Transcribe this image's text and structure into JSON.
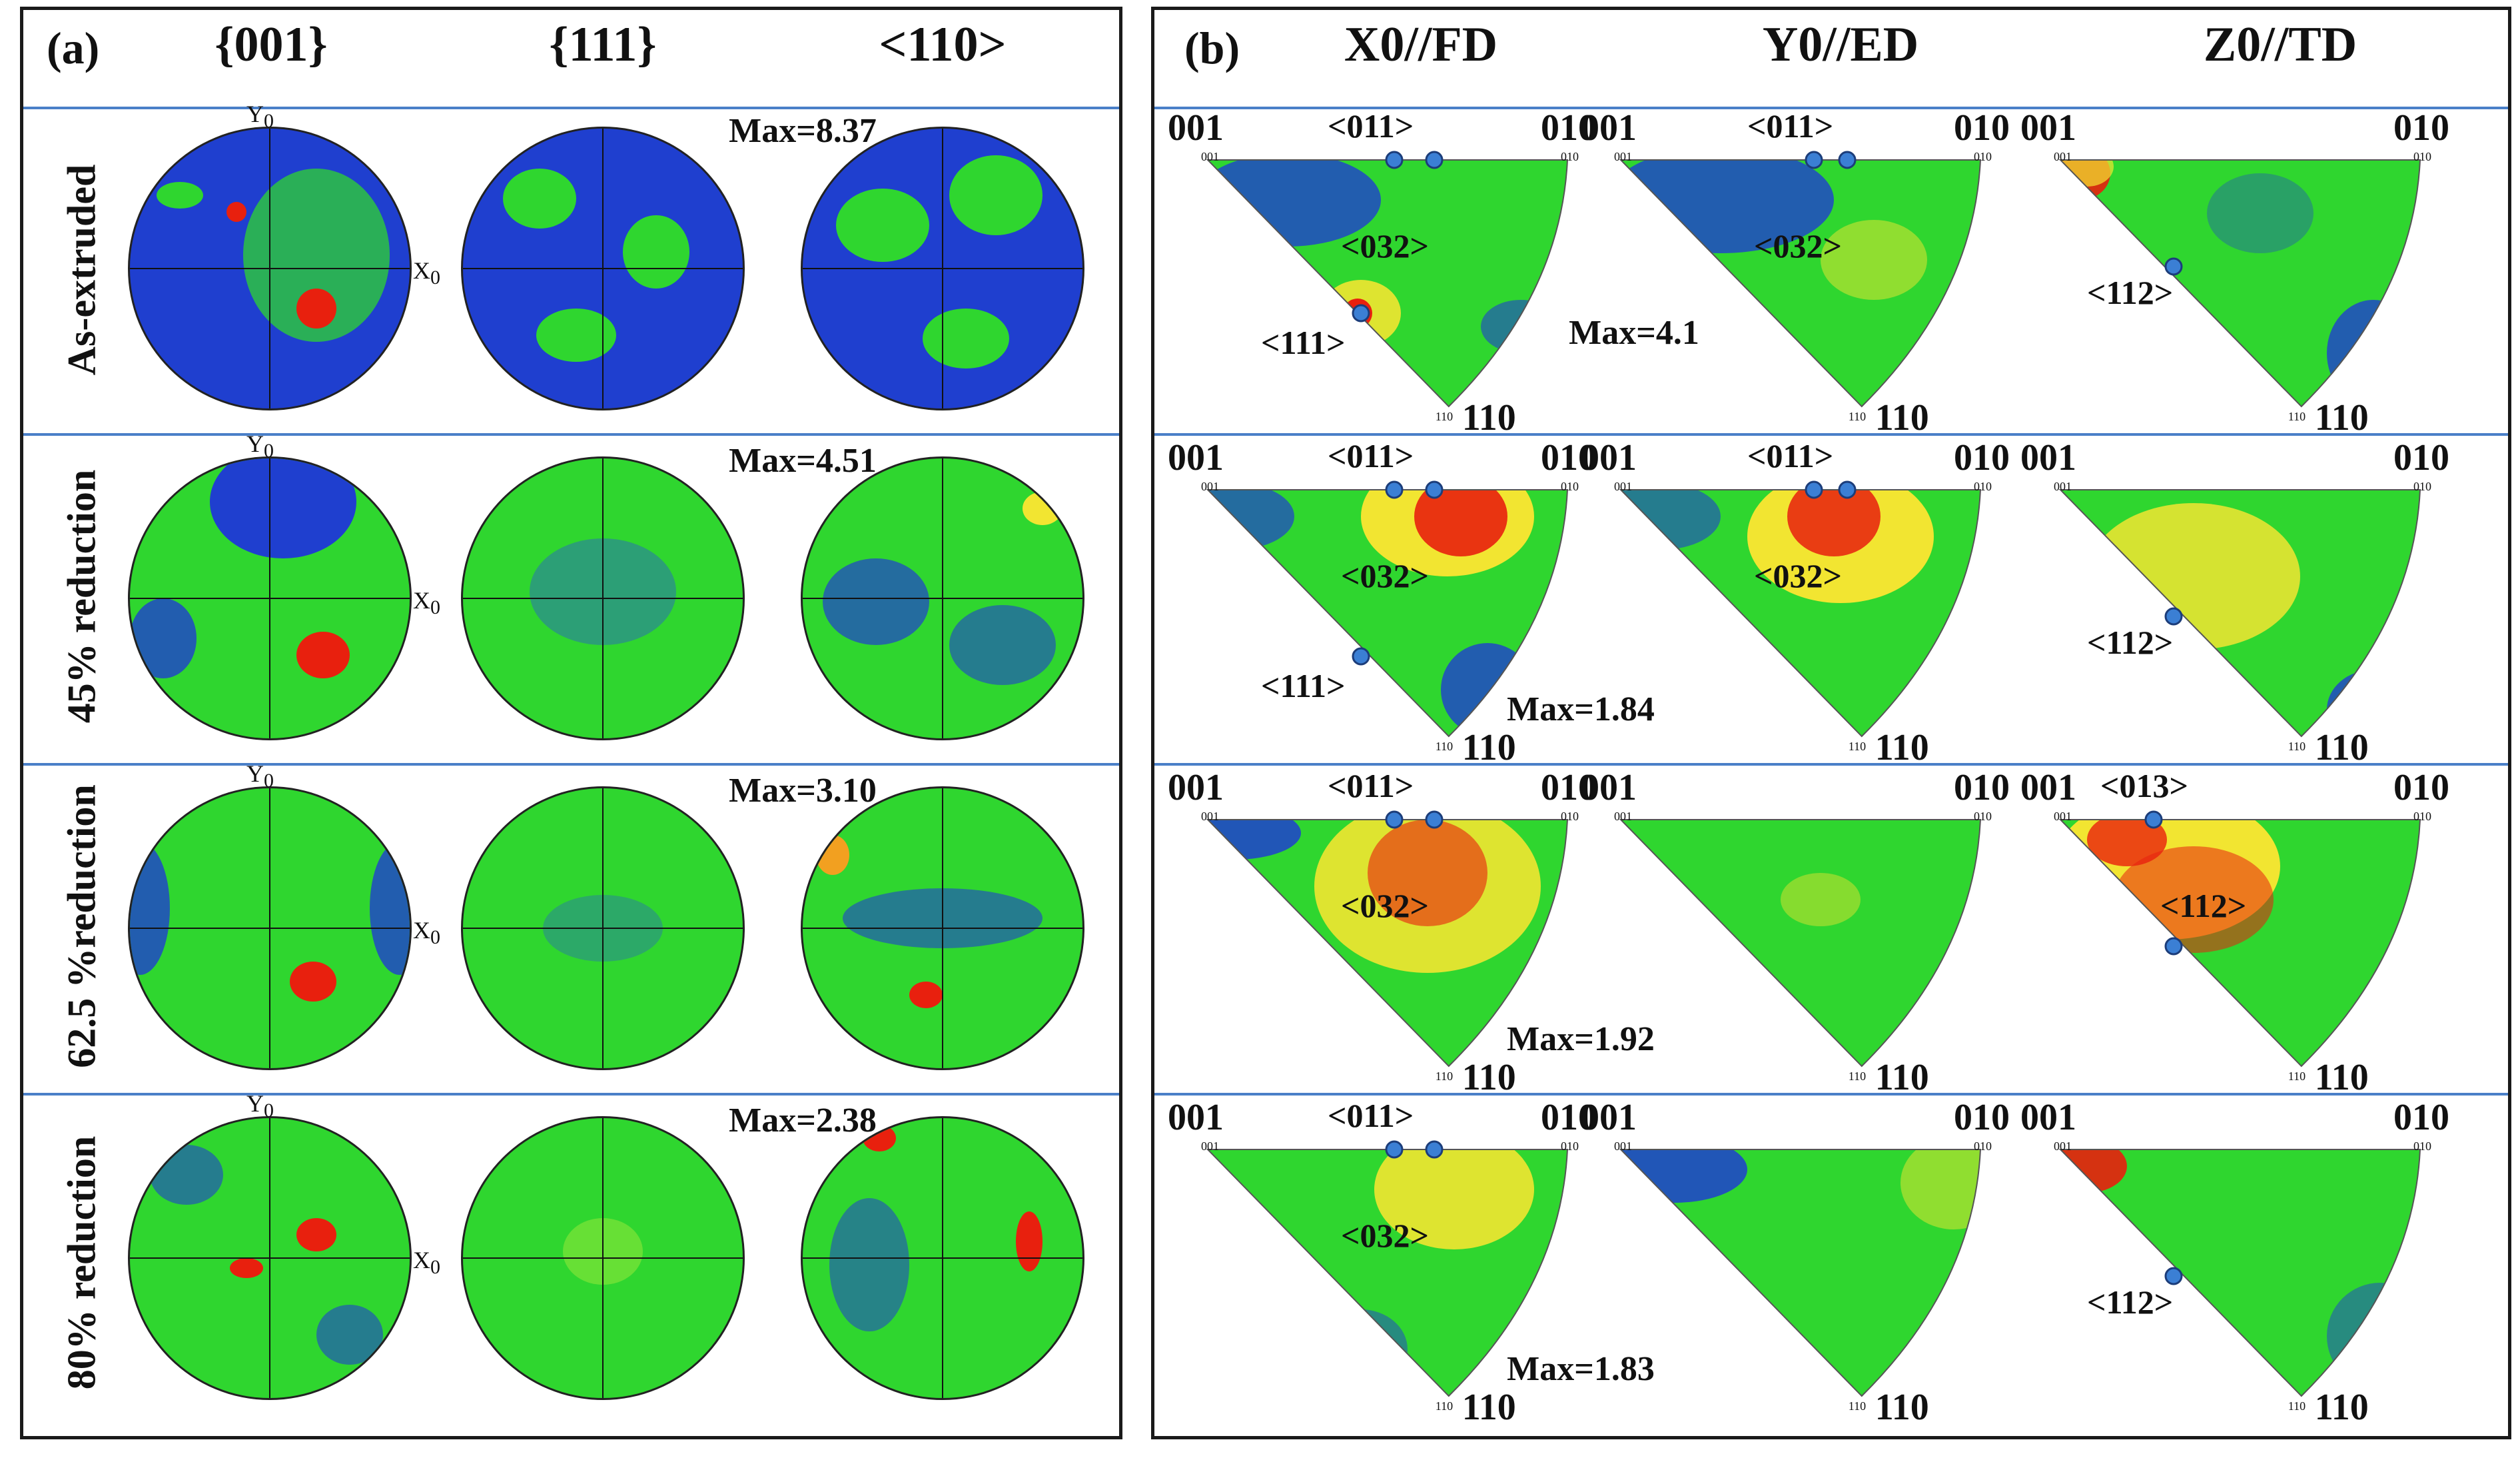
{
  "panel_a": {
    "letter": "(a)",
    "columns": [
      "{001}",
      "{111}",
      "<110>"
    ],
    "axis_y": "Y",
    "axis_x": "X",
    "axis_sub": "0",
    "rows": [
      {
        "label": "As-extruded",
        "max": "Max=8.37"
      },
      {
        "label": "45% reduction",
        "max": "Max=4.51"
      },
      {
        "label": "62.5 %reduction",
        "max": "Max=3.10"
      },
      {
        "label": "80% reduction",
        "max": "Max=2.38"
      }
    ]
  },
  "panel_b": {
    "letter": "(b)",
    "columns": [
      "X0//FD",
      "Y0//ED",
      "Z0//TD"
    ],
    "corner_labels": {
      "c001": "001",
      "c010": "010",
      "c110": "110"
    },
    "directions": {
      "d011": "<011>",
      "d032": "<032>",
      "d111": "<111>",
      "d112": "<112>",
      "d013": "<013>"
    },
    "rows": [
      {
        "max": "Max=4.1"
      },
      {
        "max": "Max=1.84"
      },
      {
        "max": "Max=1.92"
      },
      {
        "max": "Max=1.83"
      }
    ]
  },
  "colors": {
    "low": "#1f3fcf",
    "mid": "#2fd62f",
    "high": "#f2e531",
    "peak": "#e8200e",
    "separator": "#4a7fc8"
  }
}
